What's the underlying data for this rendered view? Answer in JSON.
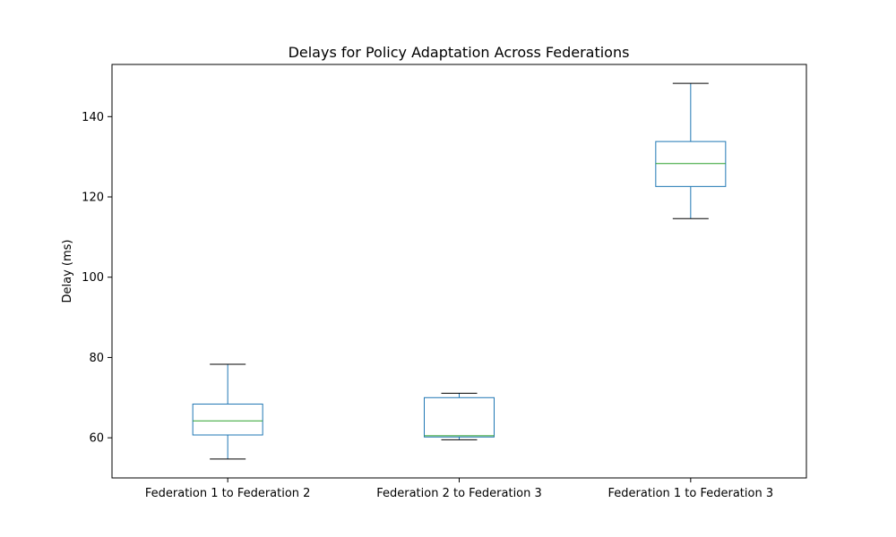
{
  "chart_data": {
    "type": "box",
    "title": "Delays for Policy Adaptation Across Federations",
    "xlabel": "",
    "ylabel": "Delay (ms)",
    "ylim": [
      50,
      153
    ],
    "yticks": [
      60,
      80,
      100,
      120,
      140
    ],
    "grid": false,
    "categories": [
      "Federation 1 to Federation 2",
      "Federation 2 to Federation 3",
      "Federation 1 to Federation 3"
    ],
    "boxes": [
      {
        "whisker_low": 54.7,
        "q1": 60.7,
        "median": 64.2,
        "q3": 68.4,
        "whisker_high": 78.3
      },
      {
        "whisker_low": 59.5,
        "q1": 60.2,
        "median": 60.5,
        "q3": 70.0,
        "whisker_high": 71.1
      },
      {
        "whisker_low": 114.6,
        "q1": 122.6,
        "median": 128.3,
        "q3": 133.8,
        "whisker_high": 148.3
      }
    ],
    "colors": {
      "box": "#1f77b4",
      "median": "#2ca02c",
      "cap": "#000000",
      "axis": "#000000"
    }
  }
}
